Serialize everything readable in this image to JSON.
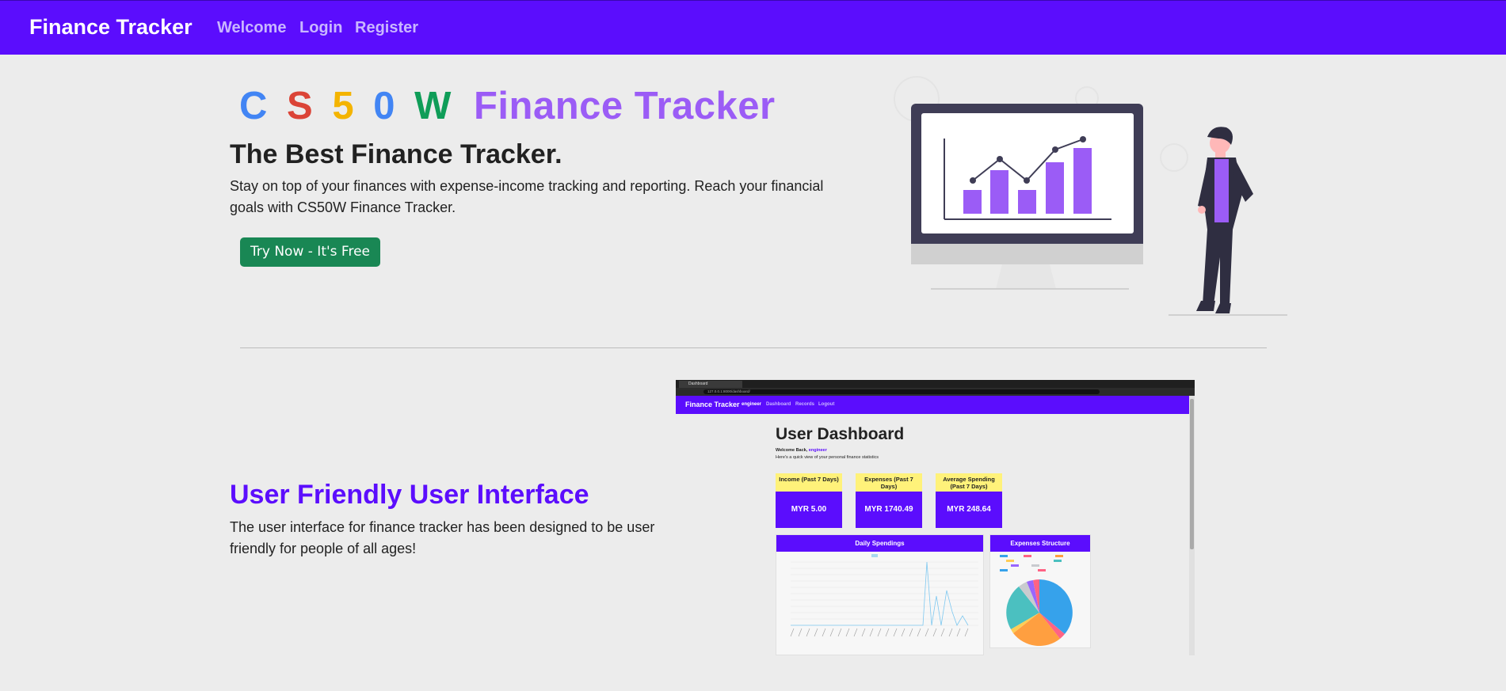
{
  "navbar": {
    "brand": "Finance Tracker",
    "links": [
      "Welcome",
      "Login",
      "Register"
    ]
  },
  "hero": {
    "title_letters": [
      {
        "char": "C",
        "color": "#4285f4"
      },
      {
        "char": "S",
        "color": "#db4437"
      },
      {
        "char": "5",
        "color": "#f4b400"
      },
      {
        "char": "0",
        "color": "#4285f4"
      },
      {
        "char": "W",
        "color": "#0f9d58"
      }
    ],
    "title_suffix": "Finance Tracker",
    "subheading": "The Best Finance Tracker.",
    "lead": "Stay on top of your finances with expense-income tracking and reporting. Reach your financial goals with CS50W Finance Tracker.",
    "cta_label": "Try Now - It's Free"
  },
  "feature": {
    "title": "User Friendly User Interface",
    "text": "The user interface for finance tracker has been designed to be user friendly for people of all ages!"
  },
  "screenshot": {
    "tab_title": "Dashboard",
    "url": "127.0.0.1:8000/dashboard/",
    "brand": "Finance Tracker",
    "nav_links": [
      "engineer",
      "Dashboard",
      "Records",
      "Logout"
    ],
    "heading": "User Dashboard",
    "welcome_prefix": "Welcome Back,",
    "welcome_user": "engineer",
    "subtitle": "Here's a quick view of your personal finance statistics",
    "stats": [
      {
        "label": "Income (Past 7 Days)",
        "value": "MYR 5.00"
      },
      {
        "label": "Expenses (Past 7 Days)",
        "value": "MYR 1740.49"
      },
      {
        "label": "Average Spending (Past 7 Days)",
        "value": "MYR 248.64"
      }
    ],
    "line_chart_title": "Daily Spendings",
    "pie_chart_title": "Expenses Structure",
    "colors": {
      "accent": "#5b0dfd",
      "stat_header": "#fff27a",
      "cta": "#198754"
    }
  }
}
